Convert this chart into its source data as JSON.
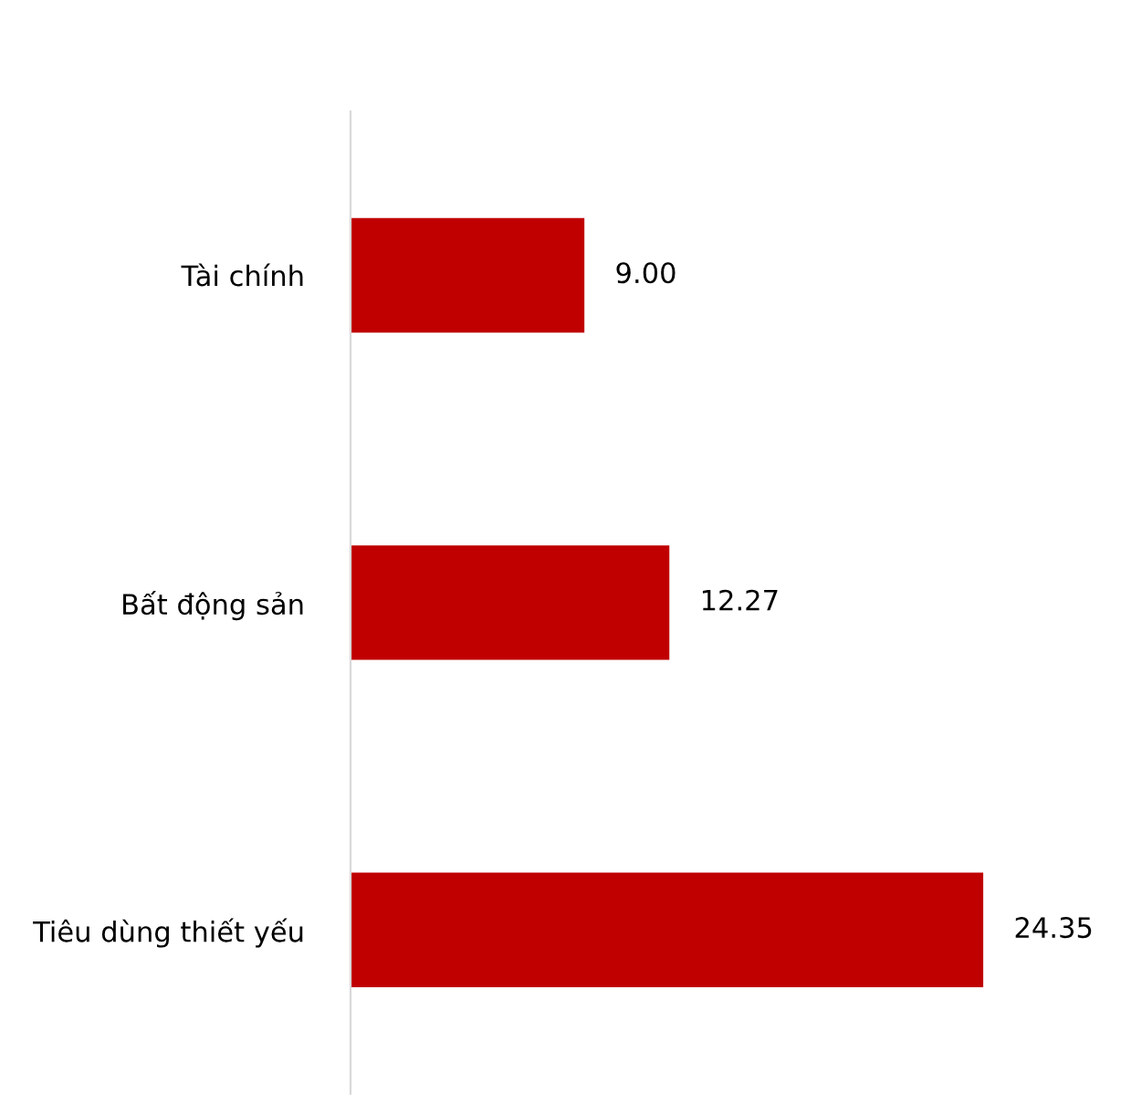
{
  "chart_data": {
    "type": "bar",
    "orientation": "horizontal",
    "categories": [
      "Tài chính",
      "Bất động sản",
      "Tiêu dùng thiết yếu"
    ],
    "series": [
      {
        "color": "#c00000",
        "values": [
          9.0,
          12.27,
          24.35
        ],
        "value_labels": [
          "9.00",
          "12.27",
          "24.35"
        ]
      }
    ],
    "grid": false
  }
}
